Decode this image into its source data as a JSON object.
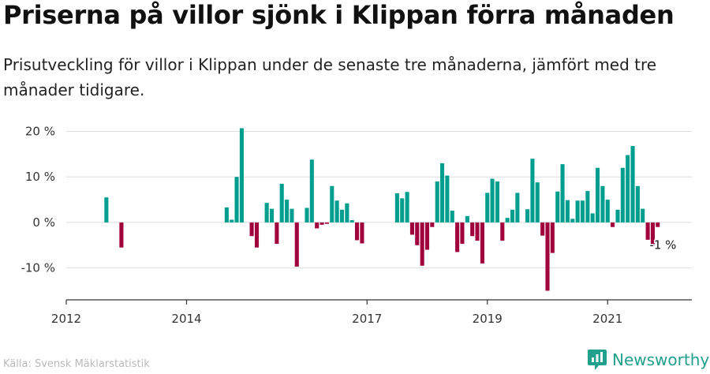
{
  "title": "Priserna på villor sjönk i Klippan förra månaden",
  "subtitle": "Prisutveckling för villor i Klippan under de senaste tre månaderna, jämfört med tre månader tidigare.",
  "source": "Källa: Svensk Mäklarstatistik",
  "brand": "Newsworthy",
  "colors": {
    "positive": "#009e8f",
    "negative": "#a0003c",
    "grid": "#dddddd",
    "axis": "#333333",
    "brand": "#20a08d"
  },
  "chart_data": {
    "type": "bar",
    "x_unit": "year",
    "xlim": [
      2012.0,
      2022.4
    ],
    "ylim": [
      -17,
      22
    ],
    "y_ticks": [
      20,
      10,
      0,
      -10
    ],
    "y_tick_labels": [
      "20 %",
      "10 %",
      "0 %",
      "-10 %"
    ],
    "x_ticks": [
      2012,
      2014,
      2017,
      2019,
      2021
    ],
    "x_tick_labels": [
      "2012",
      "2014",
      "2017",
      "2019",
      "2021"
    ],
    "annotation": {
      "text": "-1 %",
      "x": 2021.75,
      "y": -1
    },
    "points": [
      {
        "x": 2012.667,
        "y": 5.5
      },
      {
        "x": 2012.917,
        "y": -5.5
      },
      {
        "x": 2014.667,
        "y": 3.3
      },
      {
        "x": 2014.75,
        "y": 0.6
      },
      {
        "x": 2014.833,
        "y": 10
      },
      {
        "x": 2014.917,
        "y": 20.7
      },
      {
        "x": 2015.083,
        "y": -3
      },
      {
        "x": 2015.167,
        "y": -5.5
      },
      {
        "x": 2015.333,
        "y": 4.3
      },
      {
        "x": 2015.417,
        "y": 3
      },
      {
        "x": 2015.5,
        "y": -4.7
      },
      {
        "x": 2015.583,
        "y": 8.5
      },
      {
        "x": 2015.667,
        "y": 5
      },
      {
        "x": 2015.75,
        "y": 3
      },
      {
        "x": 2015.833,
        "y": -9.7
      },
      {
        "x": 2016.0,
        "y": 3.2
      },
      {
        "x": 2016.083,
        "y": 13.8
      },
      {
        "x": 2016.167,
        "y": -1.3
      },
      {
        "x": 2016.25,
        "y": -0.5
      },
      {
        "x": 2016.333,
        "y": -0.3
      },
      {
        "x": 2016.417,
        "y": 8
      },
      {
        "x": 2016.5,
        "y": 4.8
      },
      {
        "x": 2016.583,
        "y": 2.8
      },
      {
        "x": 2016.667,
        "y": 4.2
      },
      {
        "x": 2016.75,
        "y": 0.5
      },
      {
        "x": 2016.833,
        "y": -3.9
      },
      {
        "x": 2016.917,
        "y": -4.6
      },
      {
        "x": 2017.5,
        "y": 6.4
      },
      {
        "x": 2017.583,
        "y": 5.3
      },
      {
        "x": 2017.667,
        "y": 6.7
      },
      {
        "x": 2017.75,
        "y": -2.7
      },
      {
        "x": 2017.833,
        "y": -5
      },
      {
        "x": 2017.917,
        "y": -9.5
      },
      {
        "x": 2018.0,
        "y": -6
      },
      {
        "x": 2018.083,
        "y": -1
      },
      {
        "x": 2018.167,
        "y": 9
      },
      {
        "x": 2018.25,
        "y": 13
      },
      {
        "x": 2018.333,
        "y": 10.3
      },
      {
        "x": 2018.417,
        "y": 2.6
      },
      {
        "x": 2018.5,
        "y": -6.5
      },
      {
        "x": 2018.583,
        "y": -4.7
      },
      {
        "x": 2018.667,
        "y": 1.4
      },
      {
        "x": 2018.75,
        "y": -3
      },
      {
        "x": 2018.833,
        "y": -4
      },
      {
        "x": 2018.917,
        "y": -9
      },
      {
        "x": 2019.0,
        "y": 6.5
      },
      {
        "x": 2019.083,
        "y": 9.6
      },
      {
        "x": 2019.167,
        "y": 9
      },
      {
        "x": 2019.25,
        "y": -4
      },
      {
        "x": 2019.333,
        "y": 1
      },
      {
        "x": 2019.417,
        "y": 2.8
      },
      {
        "x": 2019.5,
        "y": 6.5
      },
      {
        "x": 2019.667,
        "y": 2.9
      },
      {
        "x": 2019.75,
        "y": 14
      },
      {
        "x": 2019.833,
        "y": 8.8
      },
      {
        "x": 2019.917,
        "y": -2.9
      },
      {
        "x": 2020.0,
        "y": -15
      },
      {
        "x": 2020.083,
        "y": -6.7
      },
      {
        "x": 2020.167,
        "y": 6.8
      },
      {
        "x": 2020.25,
        "y": 12.8
      },
      {
        "x": 2020.333,
        "y": 4.9
      },
      {
        "x": 2020.417,
        "y": 0.8
      },
      {
        "x": 2020.5,
        "y": 4.8
      },
      {
        "x": 2020.583,
        "y": 4.8
      },
      {
        "x": 2020.667,
        "y": 6.9
      },
      {
        "x": 2020.75,
        "y": 2
      },
      {
        "x": 2020.833,
        "y": 12
      },
      {
        "x": 2020.917,
        "y": 8
      },
      {
        "x": 2021.0,
        "y": 5
      },
      {
        "x": 2021.083,
        "y": -1
      },
      {
        "x": 2021.167,
        "y": 2.8
      },
      {
        "x": 2021.25,
        "y": 12
      },
      {
        "x": 2021.333,
        "y": 14.8
      },
      {
        "x": 2021.417,
        "y": 16.8
      },
      {
        "x": 2021.5,
        "y": 8
      },
      {
        "x": 2021.583,
        "y": 3
      },
      {
        "x": 2021.667,
        "y": -3.8
      },
      {
        "x": 2021.75,
        "y": -5.2
      },
      {
        "x": 2021.833,
        "y": -1
      }
    ]
  }
}
